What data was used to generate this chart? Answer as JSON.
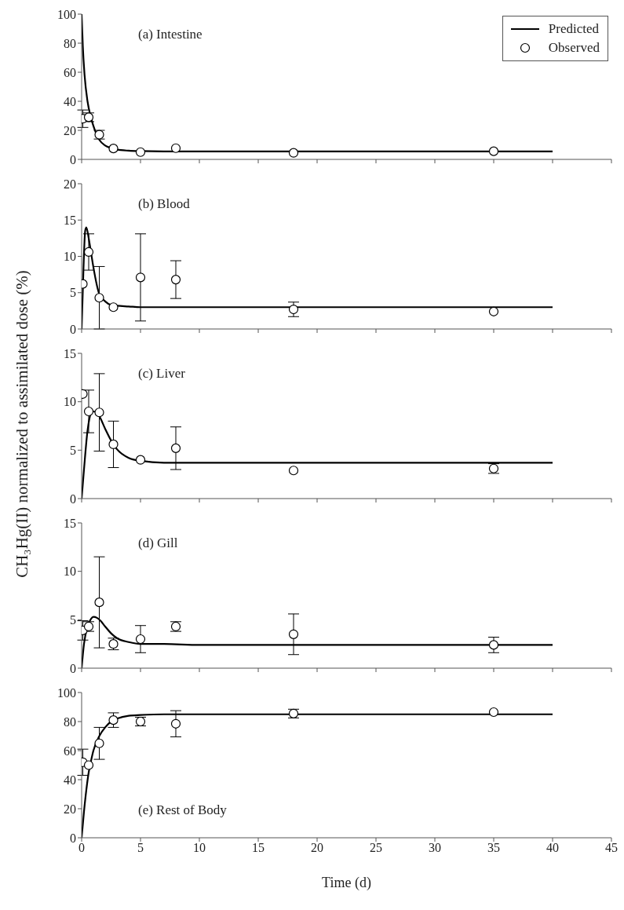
{
  "chart_data": [
    {
      "type": "line",
      "title": "(a) Intestine",
      "xlim": [
        0,
        45
      ],
      "xticks": [
        0,
        5,
        10,
        15,
        20,
        25,
        30,
        35,
        40,
        45
      ],
      "ylim": [
        0,
        100
      ],
      "yticks": [
        0,
        20,
        40,
        60,
        80,
        100
      ],
      "tick_labels": "y",
      "legend": "top right",
      "series": [
        {
          "name": "Predicted",
          "type": "line",
          "color": "#000000",
          "marker": "none",
          "line_style": "solid",
          "x": [
            0,
            0.1,
            0.25,
            0.5,
            0.75,
            1,
            1.5,
            2,
            2.5,
            3,
            4,
            5,
            7,
            10,
            20,
            40
          ],
          "values": [
            100,
            78,
            58,
            40,
            30,
            23,
            13.5,
            9.5,
            7.8,
            6.8,
            6,
            5.7,
            5.5,
            5.5,
            5.5,
            5.5
          ]
        },
        {
          "name": "Observed",
          "type": "scatter",
          "color": "#000000",
          "marker": "circle",
          "x": [
            0.1,
            0.6,
            1.5,
            2.7,
            5,
            8,
            18,
            35
          ],
          "values": [
            28,
            29,
            17,
            7.5,
            5,
            7.7,
            4.5,
            5.6
          ],
          "errors": [
            6,
            3,
            3,
            null,
            null,
            null,
            null,
            null
          ]
        }
      ]
    },
    {
      "type": "line",
      "title": "(b) Blood",
      "xlim": [
        0,
        45
      ],
      "xticks": [
        0,
        5,
        10,
        15,
        20,
        25,
        30,
        35,
        40,
        45
      ],
      "ylim": [
        0,
        20
      ],
      "yticks": [
        0,
        5,
        10,
        15,
        20
      ],
      "tick_labels": "y",
      "series": [
        {
          "type": "line",
          "color": "#000000",
          "marker": "none",
          "line_style": "solid",
          "x": [
            0,
            0.15,
            0.3,
            0.4,
            0.6,
            0.8,
            1,
            1.5,
            2,
            2.5,
            3,
            4,
            5,
            10,
            40
          ],
          "values": [
            0,
            8,
            13.5,
            14,
            12.5,
            10.5,
            8.5,
            4.8,
            3.8,
            3.3,
            3.2,
            3.1,
            3,
            3,
            3
          ]
        },
        {
          "type": "scatter",
          "color": "#000000",
          "marker": "circle",
          "x": [
            0.1,
            0.6,
            1.5,
            2.7,
            5,
            8,
            18,
            35
          ],
          "values": [
            6.2,
            10.6,
            4.3,
            3.0,
            7.1,
            6.8,
            2.7,
            2.4
          ],
          "errors": [
            null,
            2.5,
            4.3,
            null,
            6,
            2.6,
            1,
            null
          ]
        }
      ]
    },
    {
      "type": "line",
      "title": "(c) Liver",
      "ylabel": "CH₃Hg(II) normalized to assimilated dose (%)",
      "xlim": [
        0,
        45
      ],
      "xticks": [
        0,
        5,
        10,
        15,
        20,
        25,
        30,
        35,
        40,
        45
      ],
      "ylim": [
        0,
        15
      ],
      "yticks": [
        0,
        5,
        10,
        15
      ],
      "tick_labels": "y",
      "series": [
        {
          "type": "line",
          "color": "#000000",
          "marker": "none",
          "line_style": "solid",
          "x": [
            0,
            0.2,
            0.5,
            0.8,
            1,
            1.5,
            2,
            2.5,
            3,
            4,
            5,
            7,
            10,
            40
          ],
          "values": [
            0,
            3,
            7,
            8.8,
            9,
            8.5,
            7.2,
            6,
            5.1,
            4.2,
            3.9,
            3.7,
            3.7,
            3.7
          ]
        },
        {
          "type": "scatter",
          "color": "#000000",
          "marker": "circle",
          "x": [
            0.1,
            0.6,
            1.5,
            2.7,
            5,
            8,
            18,
            35
          ],
          "values": [
            10.8,
            9.0,
            8.9,
            5.6,
            4.0,
            5.2,
            2.9,
            3.1
          ],
          "errors": [
            null,
            2.2,
            4,
            2.4,
            null,
            2.2,
            null,
            0.5
          ]
        }
      ]
    },
    {
      "type": "line",
      "title": "(d) Gill",
      "xlim": [
        0,
        45
      ],
      "xticks": [
        0,
        5,
        10,
        15,
        20,
        25,
        30,
        35,
        40,
        45
      ],
      "ylim": [
        0,
        15
      ],
      "yticks": [
        0,
        5,
        10,
        15
      ],
      "tick_labels": "y",
      "series": [
        {
          "type": "line",
          "color": "#000000",
          "marker": "none",
          "line_style": "solid",
          "x": [
            0,
            0.2,
            0.5,
            0.8,
            1,
            1.3,
            1.6,
            2,
            2.5,
            3,
            4,
            5,
            7,
            10,
            40
          ],
          "values": [
            0,
            2.5,
            4.3,
            5.1,
            5.3,
            5.2,
            4.9,
            4.3,
            3.6,
            3.1,
            2.7,
            2.5,
            2.5,
            2.4,
            2.4
          ]
        },
        {
          "type": "scatter",
          "color": "#000000",
          "marker": "circle",
          "x": [
            0.1,
            0.6,
            1.5,
            2.7,
            5,
            8,
            18,
            35
          ],
          "values": [
            3.9,
            4.3,
            6.8,
            2.5,
            3.0,
            4.3,
            3.5,
            2.4
          ],
          "errors": [
            1,
            0.5,
            4.7,
            0.6,
            1.4,
            0.5,
            2.1,
            0.8
          ]
        }
      ]
    },
    {
      "type": "line",
      "title": "(e) Rest of Body",
      "xlabel": "Time (d)",
      "xlim": [
        0,
        45
      ],
      "xticks": [
        0,
        5,
        10,
        15,
        20,
        25,
        30,
        35,
        40,
        45
      ],
      "ylim": [
        0,
        100
      ],
      "yticks": [
        0,
        20,
        40,
        60,
        80,
        100
      ],
      "series": [
        {
          "type": "line",
          "color": "#000000",
          "marker": "none",
          "line_style": "solid",
          "x": [
            0,
            0.2,
            0.4,
            0.6,
            0.8,
            1,
            1.5,
            2,
            2.5,
            3,
            4,
            5,
            7,
            10,
            40
          ],
          "values": [
            0,
            18,
            33,
            45,
            53,
            60,
            70,
            76,
            80,
            82,
            84,
            84.5,
            85,
            85,
            85
          ]
        },
        {
          "type": "scatter",
          "color": "#000000",
          "marker": "circle",
          "x": [
            0.1,
            0.6,
            1.5,
            2.7,
            5,
            8,
            18,
            35
          ],
          "values": [
            52,
            50,
            65,
            81,
            80,
            78.5,
            85.5,
            86.5
          ],
          "errors": [
            9,
            null,
            11,
            5,
            3,
            9,
            3,
            null
          ]
        }
      ]
    }
  ]
}
